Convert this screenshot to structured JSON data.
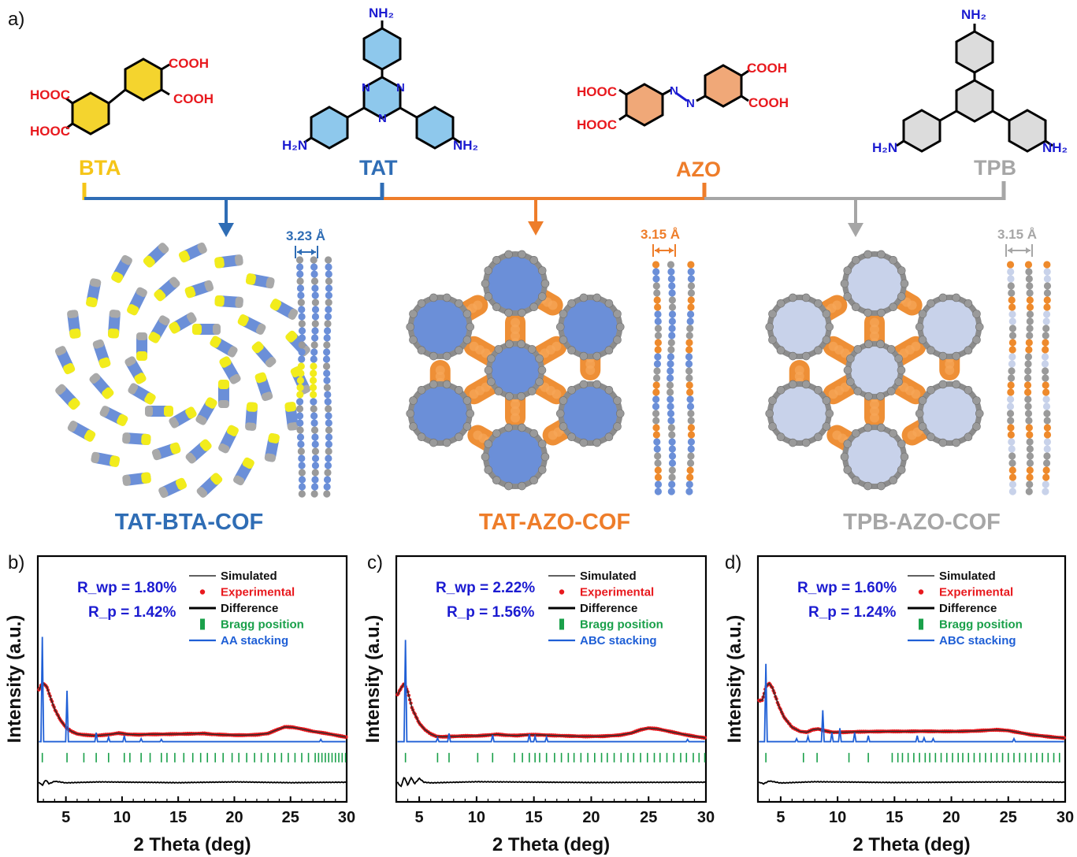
{
  "figure": {
    "panel_a_label": "a)",
    "colors": {
      "bta": "#f5c518",
      "tat": "#2f6db5",
      "azo": "#ee7d2a",
      "tpb": "#a6a6a6",
      "cooh": "#e8191e",
      "nh2": "#1c1cd1",
      "ring_bta": "#f4d42e",
      "ring_tat": "#8ec8ec",
      "ring_azo": "#f0a878",
      "ring_tpb": "#dcdcdc",
      "cof_blue": "#6b8fd8",
      "cof_yellow": "#f2ec1c",
      "cof_orange": "#ee8a2c",
      "cof_gray": "#8a8a8a",
      "cof_pale": "#c8d2ea"
    },
    "molecules": {
      "bta": {
        "name": "BTA",
        "cooh": "COOH",
        "hooc": "HOOC"
      },
      "tat": {
        "name": "TAT",
        "nh2": "NH₂",
        "h2n": "H₂N",
        "n": "N"
      },
      "azo": {
        "name": "AZO",
        "cooh": "COOH",
        "hooc": "HOOC",
        "n": "N"
      },
      "tpb": {
        "name": "TPB",
        "nh2": "NH₂",
        "h2n": "H₂N"
      }
    },
    "cofs": [
      {
        "name": "TAT-BTA-COF",
        "spacing": "3.23 Å"
      },
      {
        "name": "TAT-AZO-COF",
        "spacing": "3.15 Å"
      },
      {
        "name": "TPB-AZO-COF",
        "spacing": "3.15 Å"
      }
    ]
  },
  "chart_data": [
    {
      "type": "line",
      "panel": "b)",
      "xlabel": "2 Theta (deg)",
      "ylabel": "Intensity (a.u.)",
      "xlim": [
        2.5,
        30
      ],
      "xticks": [
        5,
        10,
        15,
        20,
        25,
        30
      ],
      "rwp": "R_wp = 1.80%",
      "rp": "R_p = 1.42%",
      "legend": [
        "Simulated",
        "Experimental",
        "Difference",
        "Bragg position",
        "AA stacking"
      ],
      "experimental": [
        [
          2.6,
          0.78
        ],
        [
          2.8,
          0.84
        ],
        [
          3.0,
          0.86
        ],
        [
          3.3,
          0.82
        ],
        [
          3.6,
          0.7
        ],
        [
          4.0,
          0.55
        ],
        [
          4.5,
          0.42
        ],
        [
          5.0,
          0.33
        ],
        [
          5.5,
          0.28
        ],
        [
          6.0,
          0.25
        ],
        [
          6.5,
          0.24
        ],
        [
          7.0,
          0.235
        ],
        [
          7.5,
          0.23
        ],
        [
          8.0,
          0.232
        ],
        [
          9.0,
          0.245
        ],
        [
          9.7,
          0.26
        ],
        [
          10.5,
          0.245
        ],
        [
          11.5,
          0.24
        ],
        [
          12.5,
          0.245
        ],
        [
          13.5,
          0.245
        ],
        [
          14.5,
          0.248
        ],
        [
          15.5,
          0.25
        ],
        [
          16.5,
          0.252
        ],
        [
          17.3,
          0.255
        ],
        [
          18.0,
          0.245
        ],
        [
          19.0,
          0.24
        ],
        [
          20.0,
          0.235
        ],
        [
          21.0,
          0.235
        ],
        [
          22.0,
          0.24
        ],
        [
          23.0,
          0.255
        ],
        [
          23.8,
          0.3
        ],
        [
          24.5,
          0.335
        ],
        [
          25.2,
          0.33
        ],
        [
          26.0,
          0.31
        ],
        [
          27.0,
          0.28
        ],
        [
          28.0,
          0.26
        ],
        [
          29.0,
          0.235
        ],
        [
          30.0,
          0.21
        ]
      ],
      "aa_peaks": [
        [
          2.9,
          0.7
        ],
        [
          5.1,
          0.34
        ],
        [
          7.7,
          0.06
        ],
        [
          8.8,
          0.03
        ],
        [
          10.2,
          0.04
        ],
        [
          11.7,
          0.02
        ],
        [
          13.5,
          0.015
        ],
        [
          27.7,
          0.015
        ]
      ],
      "bragg_positions": [
        2.9,
        5.1,
        6.6,
        7.7,
        8.8,
        10.2,
        10.7,
        11.7,
        12.5,
        13.5,
        14.0,
        14.7,
        15.5,
        16.3,
        17.0,
        17.6,
        18.3,
        19.0,
        19.8,
        20.4,
        21.1,
        21.8,
        22.4,
        23.0,
        23.6,
        24.2,
        24.8,
        25.4,
        26.0,
        26.6,
        27.2,
        27.5,
        27.8,
        28.1,
        28.4,
        28.7,
        29.0,
        29.3,
        29.6,
        29.9
      ],
      "difference": [
        [
          2.6,
          0.0
        ],
        [
          2.9,
          -0.02
        ],
        [
          3.2,
          0.015
        ],
        [
          3.5,
          -0.01
        ],
        [
          4.0,
          0.006
        ],
        [
          5.0,
          -0.004
        ],
        [
          8.0,
          0.002
        ],
        [
          15.0,
          -0.003
        ],
        [
          20.0,
          0.002
        ],
        [
          25.0,
          -0.003
        ],
        [
          30.0,
          0.0
        ]
      ]
    },
    {
      "type": "line",
      "panel": "c)",
      "xlabel": "2 Theta (deg)",
      "ylabel": "Intensity (a.u.)",
      "xlim": [
        3,
        30
      ],
      "xticks": [
        5,
        10,
        15,
        20,
        25,
        30
      ],
      "rwp": "R_wp = 2.22%",
      "rp": "R_p = 1.56%",
      "legend": [
        "Simulated",
        "Experimental",
        "Difference",
        "Bragg position",
        "ABC stacking"
      ],
      "experimental": [
        [
          3.1,
          0.72
        ],
        [
          3.4,
          0.8
        ],
        [
          3.7,
          0.86
        ],
        [
          4.0,
          0.76
        ],
        [
          4.4,
          0.55
        ],
        [
          5.0,
          0.38
        ],
        [
          5.5,
          0.3
        ],
        [
          6.0,
          0.25
        ],
        [
          6.5,
          0.22
        ],
        [
          7.0,
          0.215
        ],
        [
          8.0,
          0.22
        ],
        [
          9.0,
          0.225
        ],
        [
          10.0,
          0.225
        ],
        [
          11.0,
          0.235
        ],
        [
          11.8,
          0.245
        ],
        [
          12.5,
          0.235
        ],
        [
          13.5,
          0.23
        ],
        [
          14.5,
          0.24
        ],
        [
          15.5,
          0.238
        ],
        [
          16.5,
          0.232
        ],
        [
          18.0,
          0.225
        ],
        [
          19.5,
          0.22
        ],
        [
          21.0,
          0.222
        ],
        [
          22.5,
          0.235
        ],
        [
          23.5,
          0.26
        ],
        [
          24.3,
          0.3
        ],
        [
          25.0,
          0.32
        ],
        [
          25.8,
          0.31
        ],
        [
          26.8,
          0.28
        ],
        [
          28.0,
          0.245
        ],
        [
          29.0,
          0.22
        ],
        [
          30.0,
          0.2
        ]
      ],
      "abc_peaks": [
        [
          3.8,
          0.68
        ],
        [
          6.6,
          0.025
        ],
        [
          7.6,
          0.055
        ],
        [
          11.4,
          0.045
        ],
        [
          14.6,
          0.05
        ],
        [
          15.1,
          0.035
        ],
        [
          16.1,
          0.03
        ],
        [
          28.4,
          0.015
        ]
      ],
      "bragg_positions": [
        3.8,
        6.6,
        7.6,
        10.1,
        11.4,
        13.3,
        14.0,
        14.6,
        15.1,
        15.5,
        16.1,
        16.8,
        17.4,
        18.0,
        18.5,
        19.1,
        19.7,
        20.3,
        20.9,
        21.4,
        22.0,
        22.6,
        23.2,
        23.7,
        24.3,
        24.9,
        25.5,
        26.0,
        26.6,
        27.2,
        27.8,
        28.3,
        28.9,
        29.4,
        29.9
      ],
      "difference": [
        [
          3.1,
          0.0
        ],
        [
          3.4,
          -0.03
        ],
        [
          3.7,
          0.035
        ],
        [
          4.0,
          -0.02
        ],
        [
          4.3,
          0.03
        ],
        [
          4.6,
          -0.01
        ],
        [
          5.0,
          0.025
        ],
        [
          5.4,
          0.0
        ],
        [
          6.0,
          -0.004
        ],
        [
          10.0,
          0.003
        ],
        [
          20.0,
          -0.002
        ],
        [
          30.0,
          0.0
        ]
      ]
    },
    {
      "type": "line",
      "panel": "d)",
      "xlabel": "2 Theta (deg)",
      "ylabel": "Intensity (a.u.)",
      "xlim": [
        3,
        30
      ],
      "xticks": [
        5,
        10,
        15,
        20,
        25,
        30
      ],
      "rwp": "R_wp = 1.60%",
      "rp": "R_p = 1.24%",
      "legend": [
        "Simulated",
        "Experimental",
        "Difference",
        "Bragg position",
        "ABC stacking"
      ],
      "experimental": [
        [
          3.1,
          0.65
        ],
        [
          3.4,
          0.66
        ],
        [
          3.7,
          0.82
        ],
        [
          4.0,
          0.86
        ],
        [
          4.3,
          0.8
        ],
        [
          4.8,
          0.6
        ],
        [
          5.3,
          0.45
        ],
        [
          6.0,
          0.33
        ],
        [
          6.7,
          0.28
        ],
        [
          7.3,
          0.27
        ],
        [
          7.8,
          0.3
        ],
        [
          8.3,
          0.31
        ],
        [
          8.8,
          0.29
        ],
        [
          9.5,
          0.27
        ],
        [
          10.5,
          0.27
        ],
        [
          11.5,
          0.275
        ],
        [
          13.0,
          0.278
        ],
        [
          14.5,
          0.28
        ],
        [
          16.0,
          0.28
        ],
        [
          17.5,
          0.282
        ],
        [
          19.0,
          0.28
        ],
        [
          20.5,
          0.28
        ],
        [
          22.0,
          0.285
        ],
        [
          23.3,
          0.295
        ],
        [
          24.0,
          0.3
        ],
        [
          25.0,
          0.29
        ],
        [
          26.0,
          0.265
        ],
        [
          27.0,
          0.24
        ],
        [
          28.0,
          0.225
        ],
        [
          29.0,
          0.21
        ],
        [
          30.0,
          0.2
        ]
      ],
      "abc_peaks": [
        [
          3.7,
          0.52
        ],
        [
          6.4,
          0.02
        ],
        [
          7.4,
          0.035
        ],
        [
          8.7,
          0.21
        ],
        [
          9.5,
          0.06
        ],
        [
          10.2,
          0.09
        ],
        [
          11.5,
          0.06
        ],
        [
          12.7,
          0.04
        ],
        [
          17.0,
          0.04
        ],
        [
          17.6,
          0.025
        ],
        [
          18.4,
          0.02
        ],
        [
          25.5,
          0.02
        ]
      ],
      "bragg_positions": [
        3.7,
        7.0,
        8.2,
        11.0,
        12.7,
        14.8,
        15.3,
        15.7,
        16.2,
        16.7,
        17.2,
        17.7,
        18.1,
        18.6,
        19.1,
        19.6,
        20.1,
        20.6,
        21.0,
        21.5,
        22.0,
        22.5,
        23.0,
        23.5,
        24.0,
        24.5,
        25.0,
        25.5,
        26.0,
        26.5,
        27.0,
        27.5,
        28.0,
        28.5,
        29.0,
        29.5
      ],
      "difference": [
        [
          3.1,
          0.0
        ],
        [
          3.5,
          -0.01
        ],
        [
          4.0,
          0.008
        ],
        [
          5.0,
          -0.005
        ],
        [
          8.0,
          0.003
        ],
        [
          15.0,
          -0.002
        ],
        [
          25.0,
          0.002
        ],
        [
          30.0,
          0.0
        ]
      ]
    }
  ]
}
